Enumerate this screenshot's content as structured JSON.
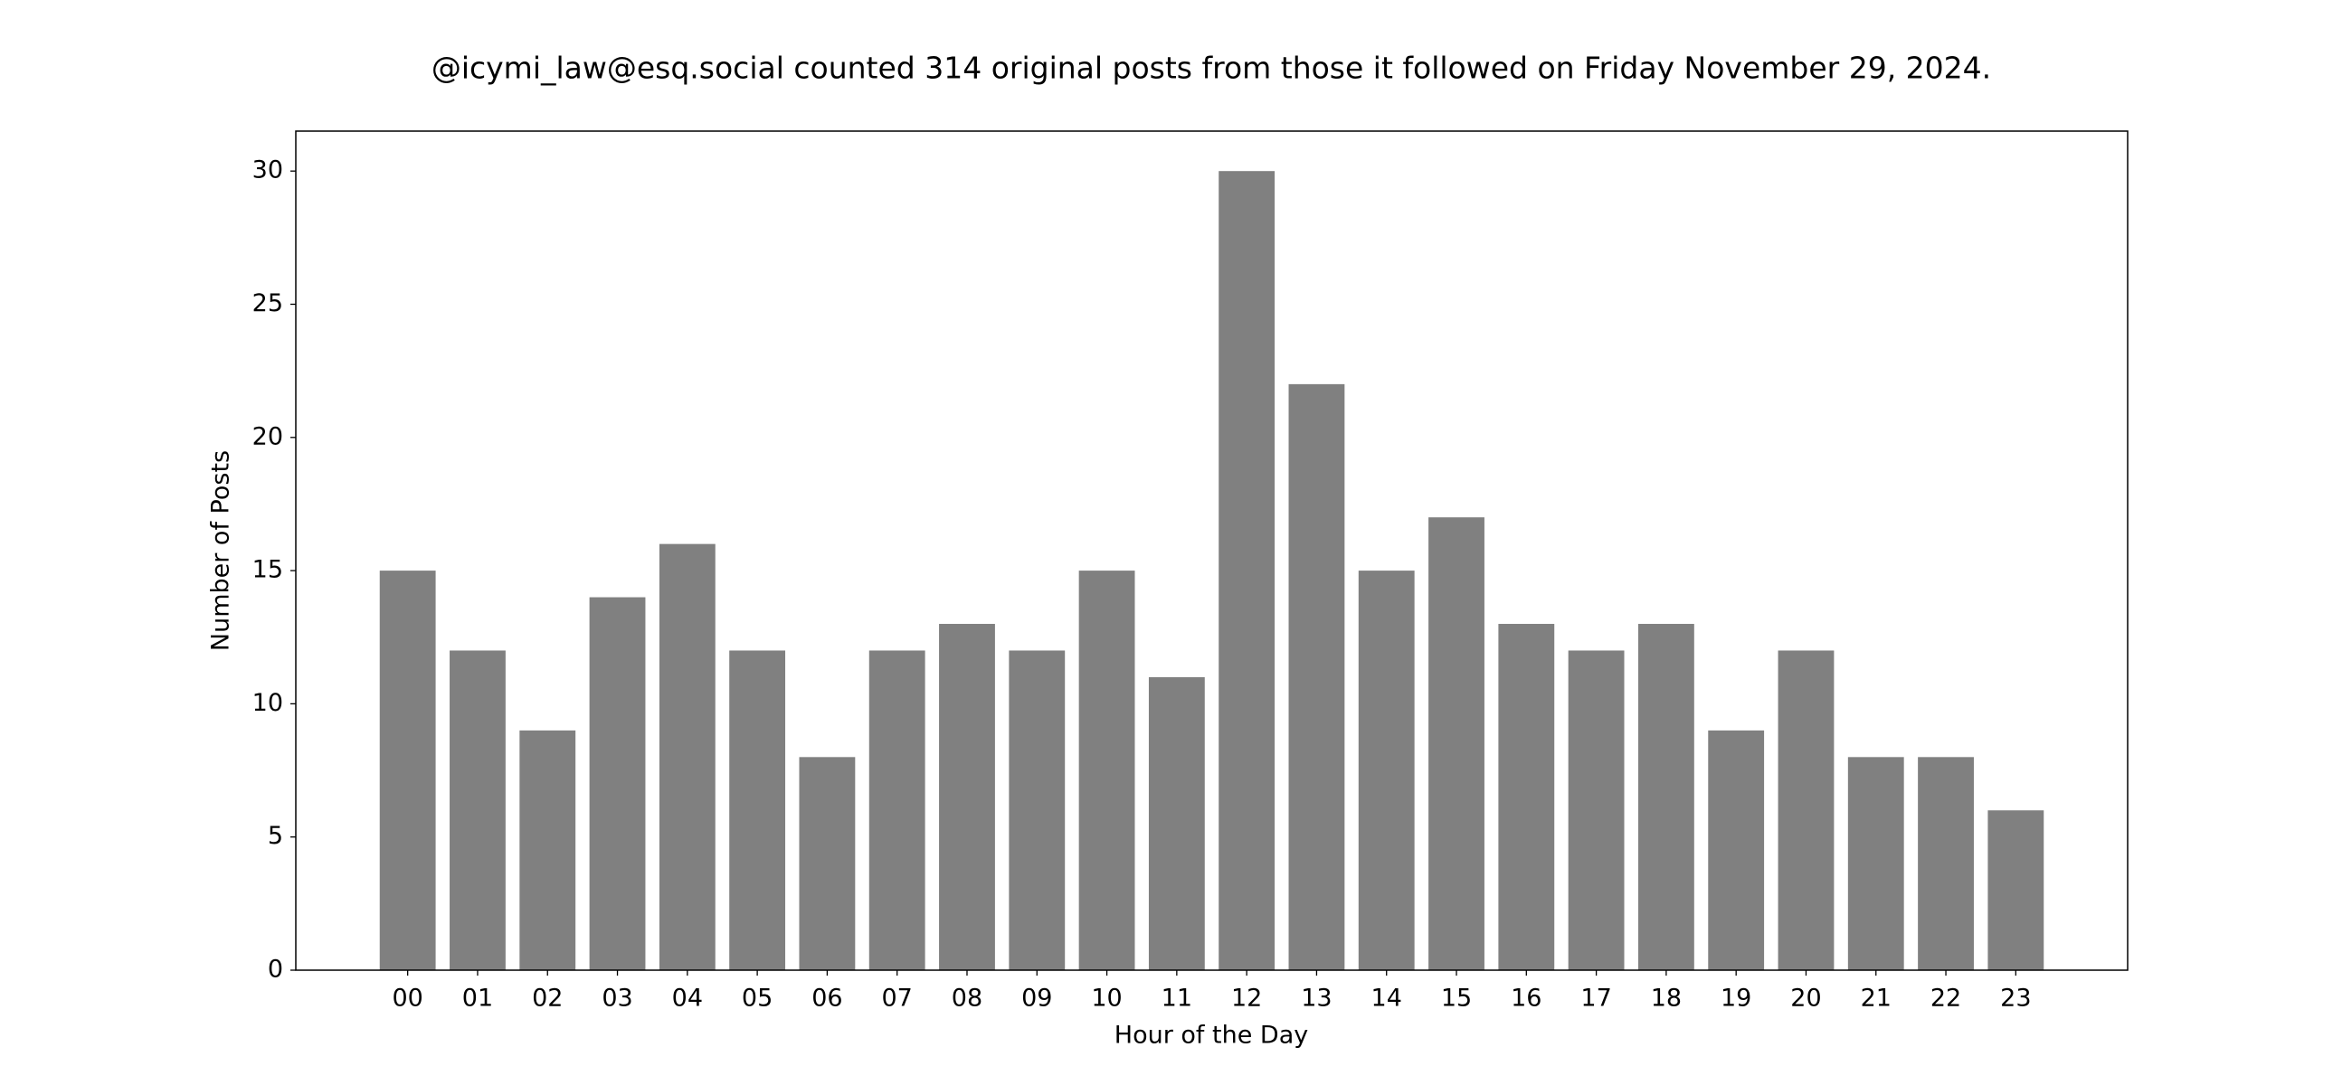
{
  "chart_data": {
    "type": "bar",
    "title": "@icymi_law@esq.social counted 314 original posts from those it followed on Friday November 29, 2024.",
    "x_label": "Hour of the Day",
    "y_label": "Number of Posts",
    "categories": [
      "00",
      "01",
      "02",
      "03",
      "04",
      "05",
      "06",
      "07",
      "08",
      "09",
      "10",
      "11",
      "12",
      "13",
      "14",
      "15",
      "16",
      "17",
      "18",
      "19",
      "20",
      "21",
      "22",
      "23"
    ],
    "values": [
      15,
      12,
      9,
      14,
      16,
      12,
      8,
      12,
      13,
      12,
      15,
      11,
      30,
      22,
      15,
      17,
      13,
      12,
      13,
      9,
      12,
      8,
      8,
      6
    ],
    "color": "#808080",
    "ylim": [
      0,
      31.5
    ],
    "yticks": [
      0,
      5,
      10,
      15,
      20,
      25,
      30
    ],
    "grid": false
  }
}
